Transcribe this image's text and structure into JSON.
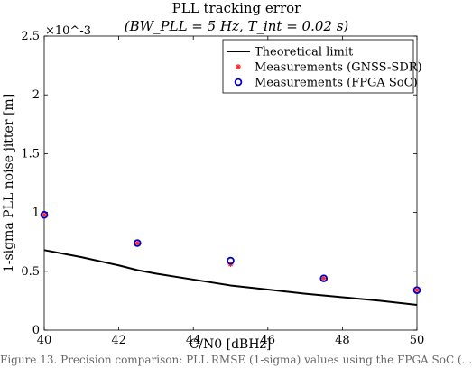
{
  "chart_data": {
    "type": "line",
    "title": "PLL tracking error",
    "subtitle": "(BW_PLL = 5 Hz, T_int = 0.02 s)",
    "xlabel": "C/N0 [dBHz]",
    "ylabel": "1-sigma PLL noise jitter [m]",
    "y_multiplier": "×10^-3",
    "xlim": [
      40,
      50
    ],
    "ylim": [
      0,
      2.5
    ],
    "xticks": [
      "40",
      "42",
      "44",
      "46",
      "48",
      "50"
    ],
    "yticks": [
      "0",
      "0.5",
      "1",
      "1.5",
      "2",
      "2.5"
    ],
    "grid": false,
    "legend_position": "top-right",
    "series": [
      {
        "name": "Theoretical limit",
        "style": "line",
        "color": "#000000",
        "x": [
          40,
          41,
          42,
          42.5,
          43,
          44,
          45,
          46,
          47,
          48,
          49,
          50
        ],
        "y": [
          0.68,
          0.62,
          0.55,
          0.51,
          0.48,
          0.43,
          0.38,
          0.345,
          0.31,
          0.28,
          0.25,
          0.215
        ]
      },
      {
        "name": "Measurements (GNSS-SDR)",
        "style": "star",
        "color": "#ff2222",
        "x": [
          40,
          42.5,
          45,
          47.5,
          50
        ],
        "y": [
          0.98,
          0.74,
          0.56,
          0.44,
          0.34
        ]
      },
      {
        "name": "Measurements (FPGA SoC)",
        "style": "circle",
        "color": "#0000cc",
        "x": [
          40,
          42.5,
          45,
          47.5,
          50
        ],
        "y": [
          0.98,
          0.74,
          0.59,
          0.44,
          0.34
        ]
      }
    ]
  },
  "caption": "Figure 13. Precision comparison: PLL RMSE (1-sigma) values using the FPGA SoC (..."
}
